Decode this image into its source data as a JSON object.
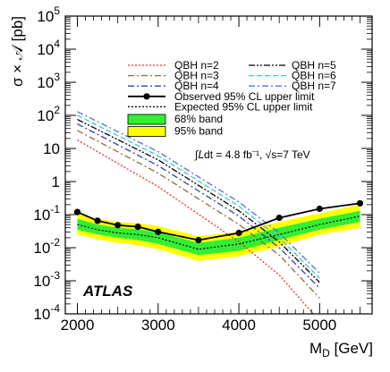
{
  "chart_data": {
    "type": "line",
    "xlabel_main": "M",
    "xlabel_sub": "D",
    "xlabel_unit": " [GeV]",
    "ylabel": "σ × 𝒜 [pb]",
    "xlim": [
      1850,
      5650
    ],
    "ylim": [
      0.0001,
      100000
    ],
    "yscale": "log",
    "grid": false,
    "x_ticks": [
      2000,
      3000,
      4000,
      5000
    ],
    "x_tick_labels": [
      "2000",
      "3000",
      "4000",
      "5000"
    ],
    "y_ticks": [
      0.0001,
      0.001,
      0.01,
      0.1,
      1,
      10,
      100,
      1000,
      10000,
      100000
    ],
    "y_tick_labels": [
      {
        "base": "10",
        "exp": "-4"
      },
      {
        "base": "10",
        "exp": "-3"
      },
      {
        "base": "10",
        "exp": "-2"
      },
      {
        "base": "10",
        "exp": "-1"
      },
      {
        "base": "1",
        "exp": ""
      },
      {
        "base": "10",
        "exp": ""
      },
      {
        "base": "10",
        "exp": "2"
      },
      {
        "base": "10",
        "exp": "3"
      },
      {
        "base": "10",
        "exp": "4"
      },
      {
        "base": "10",
        "exp": "5"
      }
    ],
    "atlas_label": "ATLAS",
    "lumi_text": "∫𝐿dt = 4.8 fb⁻¹, √s=7 TeV",
    "legend": [
      {
        "label": "QBH n=2",
        "color": "#e8302a",
        "style": "dotted"
      },
      {
        "label": "QBH n=3",
        "color": "#8c6a3c",
        "style": "dashdot"
      },
      {
        "label": "QBH n=4",
        "color": "#3040b0",
        "style": "dashdot"
      },
      {
        "label": "QBH n=5",
        "color": "#000000",
        "style": "dashdotdot"
      },
      {
        "label": "QBH n=6",
        "color": "#40c8c8",
        "style": "dashed"
      },
      {
        "label": "QBH n=7",
        "color": "#5070e0",
        "style": "dashdot"
      },
      {
        "label": "Observed 95% CL upper limit",
        "color": "#000000",
        "style": "solid-marker"
      },
      {
        "label": "Expected 95% CL upper limit",
        "color": "#000000",
        "style": "dotted"
      },
      {
        "label": "68% band",
        "color": "#33ee33",
        "style": "fill"
      },
      {
        "label": "95% band",
        "color": "#ffff00",
        "style": "fill"
      }
    ],
    "observed": {
      "x": [
        2000,
        2250,
        2500,
        2750,
        3000,
        3500,
        4000,
        4500,
        5000,
        5500
      ],
      "y": [
        0.12,
        0.065,
        0.048,
        0.043,
        0.03,
        0.017,
        0.028,
        0.08,
        0.15,
        0.22
      ]
    },
    "expected": {
      "x": [
        2000,
        2250,
        2500,
        2750,
        3000,
        3500,
        4000,
        4500,
        5000,
        5500
      ],
      "y": [
        0.05,
        0.035,
        0.028,
        0.025,
        0.02,
        0.009,
        0.013,
        0.025,
        0.05,
        0.09
      ]
    },
    "band68": {
      "x": [
        2000,
        2250,
        2500,
        2750,
        3000,
        3500,
        4000,
        4500,
        5000,
        5500
      ],
      "lo": [
        0.035,
        0.025,
        0.02,
        0.017,
        0.013,
        0.006,
        0.008,
        0.017,
        0.035,
        0.06
      ],
      "hi": [
        0.075,
        0.05,
        0.04,
        0.036,
        0.029,
        0.014,
        0.02,
        0.04,
        0.075,
        0.13
      ]
    },
    "band95": {
      "x": [
        2000,
        2250,
        2500,
        2750,
        3000,
        3500,
        4000,
        4500,
        5000,
        5500
      ],
      "lo": [
        0.025,
        0.018,
        0.014,
        0.012,
        0.009,
        0.004,
        0.0055,
        0.011,
        0.025,
        0.04
      ],
      "hi": [
        0.11,
        0.075,
        0.06,
        0.055,
        0.045,
        0.022,
        0.03,
        0.06,
        0.11,
        0.2
      ]
    },
    "theory": [
      {
        "name": "QBH n=2",
        "x": [
          2000,
          3000,
          4000,
          4500,
          5000
        ],
        "y": [
          18,
          0.7,
          0.015,
          0.0015,
          6e-05
        ]
      },
      {
        "name": "QBH n=3",
        "x": [
          2000,
          3000,
          4000,
          4500,
          5000
        ],
        "y": [
          35,
          1.8,
          0.05,
          0.006,
          0.0003
        ]
      },
      {
        "name": "QBH n=4",
        "x": [
          2000,
          3000,
          4000,
          4500,
          5000
        ],
        "y": [
          55,
          3,
          0.09,
          0.01,
          0.0006
        ]
      },
      {
        "name": "QBH n=5",
        "x": [
          2000,
          3000,
          4000,
          4500,
          5000
        ],
        "y": [
          75,
          4.5,
          0.13,
          0.015,
          0.0009
        ]
      },
      {
        "name": "QBH n=6",
        "x": [
          2000,
          3000,
          4000,
          4500,
          5000
        ],
        "y": [
          100,
          6,
          0.18,
          0.02,
          0.0012
        ]
      },
      {
        "name": "QBH n=7",
        "x": [
          2000,
          3000,
          4000,
          4500,
          5000
        ],
        "y": [
          130,
          8,
          0.24,
          0.028,
          0.0017
        ]
      }
    ]
  }
}
